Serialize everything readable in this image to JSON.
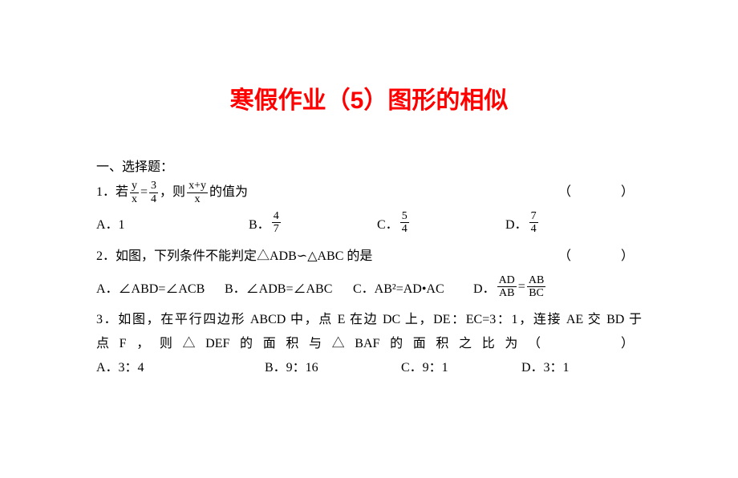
{
  "title": "寒假作业（5）图形的相似",
  "section_header": "一、选择题：",
  "q1": {
    "prefix": "1．若",
    "frac1_num": "y",
    "frac1_den": "x",
    "eq": "=",
    "frac2_num": "3",
    "frac2_den": "4",
    "mid": "，则",
    "frac3_num": "x+y",
    "frac3_den": "x",
    "suffix": "的值为",
    "paren": "（　　）",
    "options": {
      "a_label": "A．1",
      "b_label": "B．",
      "b_num": "4",
      "b_den": "7",
      "c_label": "C．",
      "c_num": "5",
      "c_den": "4",
      "d_label": "D．",
      "d_num": "7",
      "d_den": "4"
    }
  },
  "q2": {
    "text": "2．如图，下列条件不能判定△ADB∽△ABC 的是",
    "paren": "（　　）",
    "options": {
      "a": "A．∠ABD=∠ACB",
      "b": "B．∠ADB=∠ABC",
      "c": "C．AB²=AD•AC",
      "d_label": "D．",
      "d_num1": "AD",
      "d_den1": "AB",
      "d_eq": "=",
      "d_num2": "AB",
      "d_den2": "BC"
    }
  },
  "q3": {
    "line1": "3．如图，在平行四边形 ABCD 中，点 E 在边 DC 上，DE：EC=3：1，连接 AE 交 BD 于",
    "line2_prefix": "点F，则△DEF的面积与△BAF的面积之比为",
    "line2_paren": "（　　）",
    "options": {
      "a": "A．3：4",
      "b": "B．9：16",
      "c": "C．9：1",
      "d": "D．3：1"
    }
  }
}
